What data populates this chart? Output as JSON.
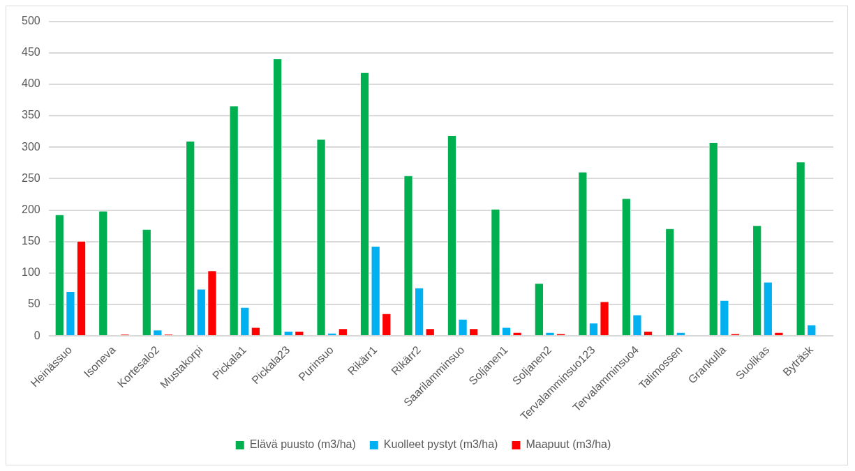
{
  "chart_data": {
    "type": "bar",
    "categories": [
      "Heinässuo",
      "Isoneva",
      "Kortesalo2",
      "Mustakorpi",
      "Pickala1",
      "Pickala23",
      "Purinsuo",
      "Rikärr1",
      "Rikärr2",
      "Saarilamminsuo",
      "Soljanen1",
      "Soljanen2",
      "Tervalamminsuo123",
      "Tervalamminsuo4",
      "Talimossen",
      "Grankulla",
      "Suolikas",
      "Byträsk"
    ],
    "series": [
      {
        "name": "Elävä puusto (m3/ha)",
        "color": "#00b050",
        "values": [
          193,
          199,
          170,
          310,
          366,
          441,
          313,
          419,
          255,
          319,
          202,
          84,
          261,
          219,
          171,
          308,
          176,
          277
        ]
      },
      {
        "name": "Kuolleet pystyt (m3/ha)",
        "color": "#00b0f0",
        "values": [
          71,
          0,
          10,
          75,
          46,
          8,
          5,
          143,
          77,
          27,
          14,
          6,
          21,
          34,
          6,
          57,
          86,
          18
        ]
      },
      {
        "name": "Maapuut (m3/ha)",
        "color": "#ff0000",
        "values": [
          151,
          3,
          3,
          104,
          14,
          8,
          12,
          36,
          12,
          12,
          6,
          4,
          55,
          8,
          0,
          4,
          6,
          0
        ]
      }
    ],
    "ylim": [
      0,
      500
    ],
    "yticks": [
      0,
      50,
      100,
      150,
      200,
      250,
      300,
      350,
      400,
      450,
      500
    ],
    "grid": "y",
    "legend": "bottom"
  }
}
